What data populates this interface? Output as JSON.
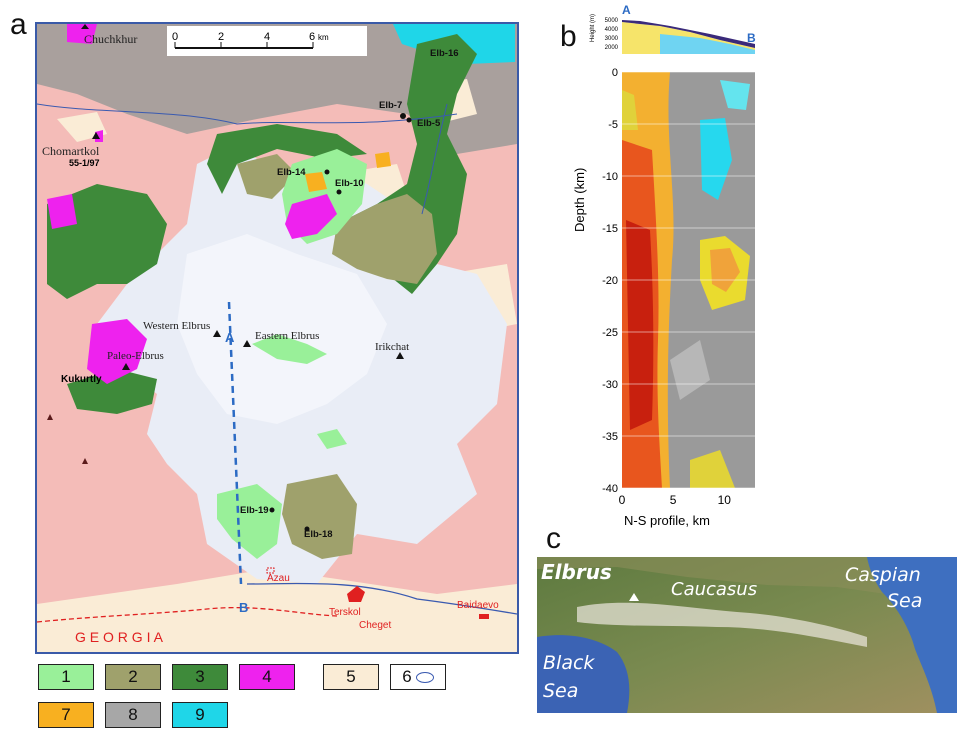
{
  "panels": {
    "a": "a",
    "b": "b",
    "c": "c"
  },
  "map_a": {
    "scale_ticks": [
      "0",
      "2",
      "4",
      "6"
    ],
    "scale_unit": "km",
    "place_labels": {
      "chuchkhur": "Chuchkhur",
      "chomartkol": "Chomartkol",
      "chomartkol_sample": "55-1/97",
      "western_elbrus": "Western Elbrus",
      "eastern_elbrus": "Eastern Elbrus",
      "paleo_elbrus": "Paleo-Elbrus",
      "kukurtly": "Kukurtly",
      "irikchat": "Irikchat",
      "georgia": "G E O R G I A"
    },
    "samples": [
      "Elb-16",
      "Elb-7",
      "Elb-5",
      "Elb-14",
      "Elb-10",
      "Elb-19",
      "Elb-18"
    ],
    "towns": {
      "azau": "Azau",
      "terskol": "Terskol",
      "cheget": "Cheget",
      "baidaevo": "Baidaevo"
    },
    "profile_ends": {
      "a": "A",
      "b": "B"
    }
  },
  "legend": [
    {
      "label": "1",
      "color": "#99f099"
    },
    {
      "label": "2",
      "color": "#9fa16c"
    },
    {
      "label": "3",
      "color": "#3e8a3a"
    },
    {
      "label": "4",
      "color": "#ee22ee"
    },
    {
      "label": "5",
      "color": "#faecd6"
    },
    {
      "label": "6",
      "color": "#ffffff"
    },
    {
      "label": "7",
      "color": "#f8b020"
    },
    {
      "label": "8",
      "color": "#a7a7a7"
    },
    {
      "label": "9",
      "color": "#1fd6e8"
    }
  ],
  "colors": {
    "basement_pink": "#f4bcb8",
    "glacier": "#e9edf6",
    "jurassic_gray": "#ab9f9c",
    "profile_line": "#2c6bc4",
    "red_marks": "#e02020"
  },
  "chart_data": {
    "type": "heatmap",
    "xlabel": "N-S profile, km",
    "ylabel": "Depth (km)",
    "height_axis_label": "Height (m)",
    "height_ticks": [
      5000,
      4000,
      3000,
      2000
    ],
    "x_ticks": [
      0,
      5,
      10
    ],
    "y_ticks": [
      0,
      -5,
      -10,
      -15,
      -20,
      -25,
      -30,
      -35,
      -40
    ],
    "xlim": [
      0,
      13
    ],
    "ylim": [
      -40,
      0
    ],
    "profile_start": "A",
    "profile_end": "B"
  },
  "map_c": {
    "elbrus": "Elbrus",
    "caucasus": "Caucasus",
    "caspian": [
      "Caspian",
      "Sea"
    ],
    "black": [
      "Black",
      "Sea"
    ]
  }
}
